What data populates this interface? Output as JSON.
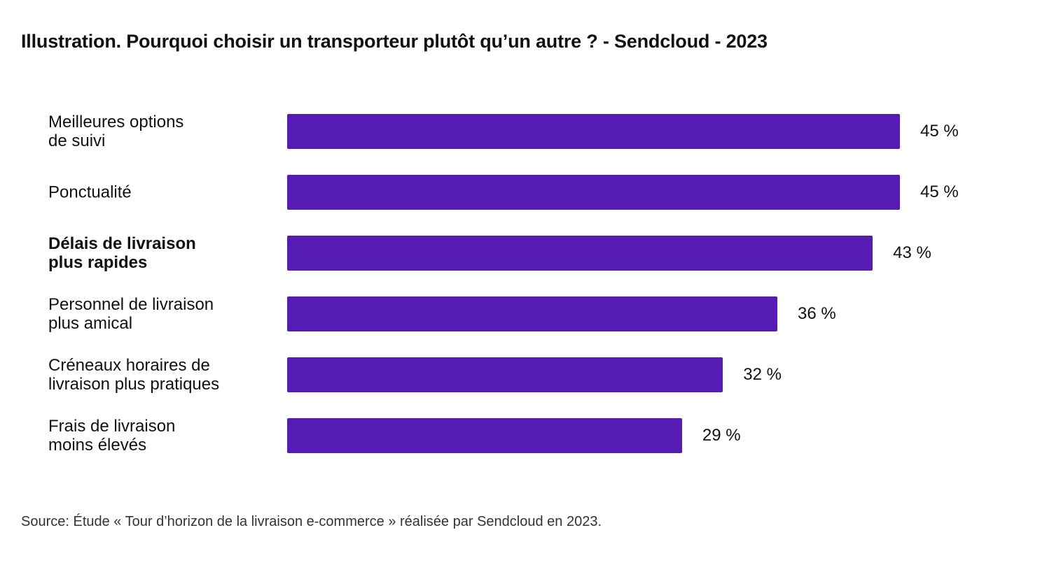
{
  "chart_data": {
    "type": "bar",
    "orientation": "horizontal",
    "title": "Illustration. Pourquoi choisir un transporteur plutôt qu’un autre ? - Sendcloud - 2023",
    "categories": [
      "Meilleures options\nde suivi",
      "Ponctualité",
      "Délais de livraison\nplus rapides",
      "Personnel de livraison\nplus amical",
      "Créneaux horaires de\nlivraison plus pratiques",
      "Frais de livraison\nmoins élevés"
    ],
    "values": [
      45,
      45,
      43,
      36,
      32,
      29
    ],
    "data_labels": [
      "45 %",
      "45 %",
      "43 %",
      "36 %",
      "32 %",
      "29 %"
    ],
    "highlighted_category_index": 2,
    "unit": "%",
    "xlabel": "",
    "ylabel": "",
    "grid": false,
    "bar_color": "#551bb3",
    "source": "Source: Étude « Tour d’horizon de la livraison e-commerce » réalisée par Sendcloud en 2023."
  }
}
